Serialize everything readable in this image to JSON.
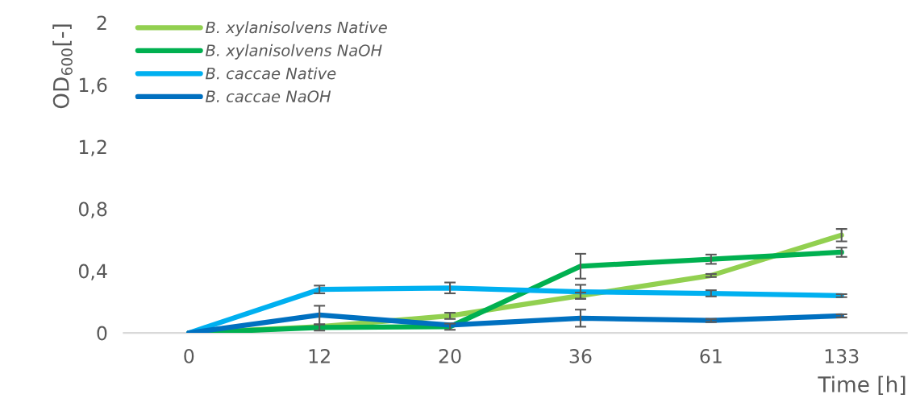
{
  "chart_data": {
    "type": "line",
    "xlabel": "Time [h]",
    "ylabel": "OD$_{600}$[-]",
    "categories": [
      "0",
      "12",
      "20",
      "36",
      "61",
      "133"
    ],
    "ylim": [
      0,
      2
    ],
    "yticks": [
      {
        "value": 0,
        "label": "0"
      },
      {
        "value": 0.4,
        "label": "0,4"
      },
      {
        "value": 0.8,
        "label": "0,8"
      },
      {
        "value": 1.2,
        "label": "1,2"
      },
      {
        "value": 1.6,
        "label": "1,6"
      },
      {
        "value": 2,
        "label": "2"
      }
    ],
    "grid": false,
    "legend": "top left",
    "marker": "none",
    "line_style": "solid",
    "series": [
      {
        "name": "B. xylanisolvens Native",
        "color": "#92d050",
        "values": [
          0,
          0.04,
          0.11,
          0.24,
          0.37,
          0.63
        ],
        "errors": [
          null,
          null,
          0.02,
          0.02,
          0.01,
          0.04
        ]
      },
      {
        "name": "B. xylanisolvens NaOH",
        "color": "#00b050",
        "values": [
          0,
          0.035,
          0.04,
          0.43,
          0.475,
          0.52
        ],
        "errors": [
          null,
          0.02,
          0.02,
          0.08,
          0.03,
          0.03
        ]
      },
      {
        "name": "B. caccae Native",
        "color": "#00b0f0",
        "values": [
          0,
          0.28,
          0.29,
          0.265,
          0.255,
          0.24
        ],
        "errors": [
          null,
          0.025,
          0.035,
          0.045,
          0.02,
          0.01
        ]
      },
      {
        "name": "B. caccae NaOH",
        "color": "#0070c0",
        "values": [
          0,
          0.115,
          0.05,
          0.095,
          0.08,
          0.11
        ],
        "errors": [
          null,
          0.06,
          null,
          0.055,
          0.01,
          0.01
        ]
      }
    ]
  }
}
